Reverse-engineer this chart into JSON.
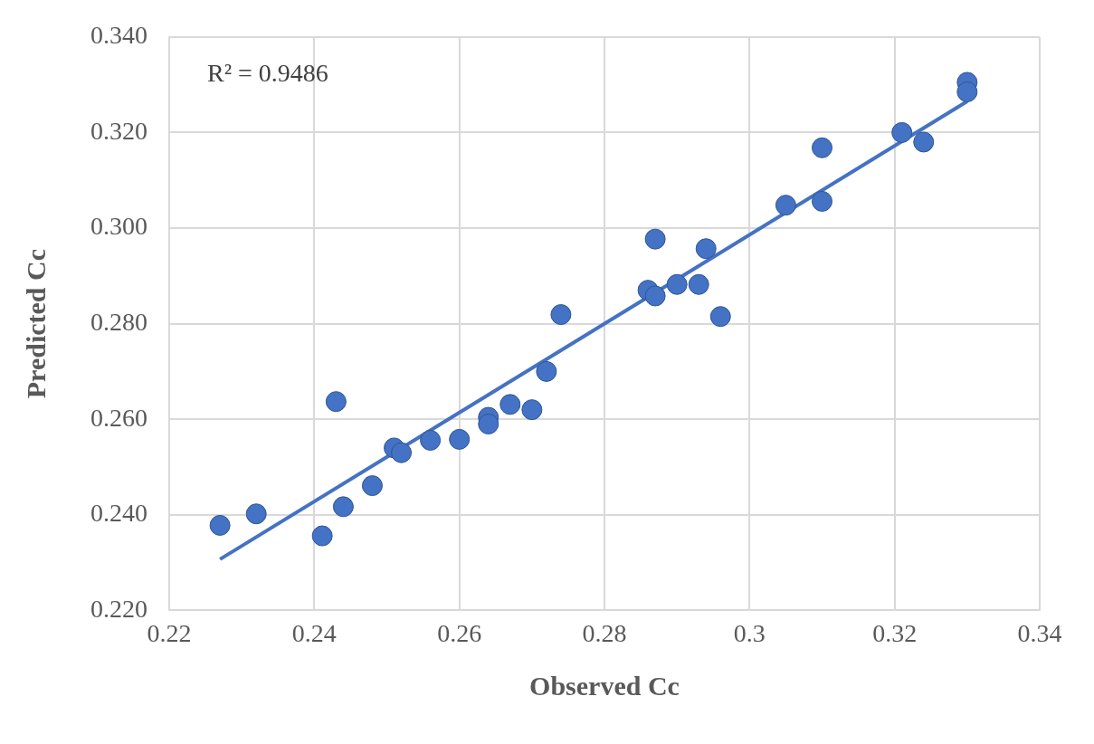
{
  "chart_data": {
    "type": "scatter",
    "xlabel": "Observed Cc",
    "ylabel": "Predicted Cc",
    "annotations": [
      "R² = 0.9486"
    ],
    "xlim": [
      0.22,
      0.34
    ],
    "xticks": [
      0.22,
      0.24,
      0.26,
      0.28,
      0.3,
      0.32,
      0.34
    ],
    "ylim": [
      0.22,
      0.34
    ],
    "yticks": [
      {
        "value": 0.22,
        "label": "0.220"
      },
      {
        "value": 0.24,
        "label": "0.240"
      },
      {
        "value": 0.26,
        "label": "0.260"
      },
      {
        "value": 0.28,
        "label": "0.280"
      },
      {
        "value": 0.3,
        "label": "0.300"
      },
      {
        "value": 0.32,
        "label": "0.320"
      },
      {
        "value": 0.34,
        "label": "0.340"
      }
    ],
    "grid": true,
    "legend": false,
    "marker": "circle",
    "series": [
      {
        "color": "#4472c4",
        "x": [
          0.227,
          0.232,
          0.2411,
          0.243,
          0.244,
          0.248,
          0.251,
          0.252,
          0.256,
          0.26,
          0.264,
          0.264,
          0.267,
          0.27,
          0.272,
          0.274,
          0.286,
          0.287,
          0.287,
          0.29,
          0.293,
          0.294,
          0.296,
          0.305,
          0.31,
          0.31,
          0.321,
          0.324,
          0.33,
          0.33
        ],
        "values": [
          0.2378,
          0.2402,
          0.2356,
          0.2637,
          0.2417,
          0.2461,
          0.254,
          0.253,
          0.2556,
          0.2558,
          0.2604,
          0.259,
          0.2631,
          0.262,
          0.27,
          0.2819,
          0.287,
          0.2858,
          0.2977,
          0.2882,
          0.2882,
          0.2957,
          0.2815,
          0.3048,
          0.3056,
          0.3168,
          0.32,
          0.318,
          0.3305,
          0.3285
        ]
      },
      {
        "type": "line",
        "color": "#4472c4",
        "marker": "none",
        "x": [
          0.227,
          0.33
        ],
        "values": [
          0.2307,
          0.3265
        ]
      }
    ]
  }
}
